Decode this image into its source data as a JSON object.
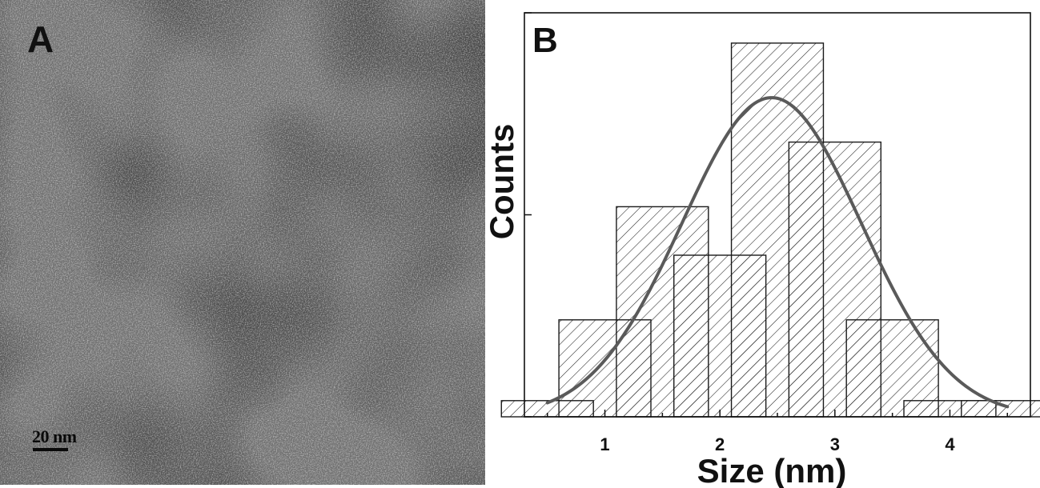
{
  "panel_a": {
    "label": "A",
    "scale_bar_label": "20 nm"
  },
  "chart_data": {
    "type": "bar",
    "panel_label": "B",
    "xlabel": "Size (nm)",
    "ylabel": "Counts",
    "x_ticks": [
      1,
      2,
      3,
      4
    ],
    "xlim": [
      0.3,
      4.7
    ],
    "ylim": [
      0,
      20
    ],
    "bin_width": 0.8,
    "bins": [
      {
        "center": 0.5,
        "count": 0.8
      },
      {
        "center": 1.0,
        "count": 4.8
      },
      {
        "center": 1.5,
        "count": 10.4
      },
      {
        "center": 2.0,
        "count": 8.0
      },
      {
        "center": 2.5,
        "count": 18.5
      },
      {
        "center": 3.0,
        "count": 13.6
      },
      {
        "center": 3.5,
        "count": 4.8
      },
      {
        "center": 4.0,
        "count": 0.8
      },
      {
        "center": 4.5,
        "count": 0.8
      }
    ],
    "fit": {
      "type": "gaussian",
      "mean": 2.45,
      "sigma": 0.78,
      "amplitude": 15.8,
      "x_range": [
        0.5,
        4.5
      ],
      "color": "#5a5a5a"
    },
    "bar_fill": "hatched",
    "grid": false
  }
}
